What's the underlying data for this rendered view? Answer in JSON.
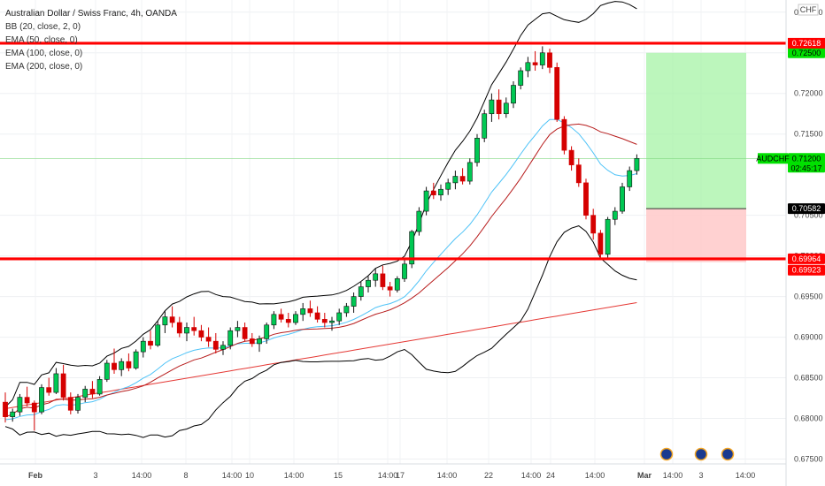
{
  "legend": {
    "title": "Australian Dollar / Swiss Franc, 4h, OANDA",
    "indicators": [
      "BB (20, close, 2, 0)",
      "EMA (50, close, 0)",
      "EMA (100, close, 0)",
      "EMA (200, close, 0)"
    ]
  },
  "currency_label": "CHF",
  "colors": {
    "up": "#26a69a",
    "up_fill": "#00c853",
    "down": "#d50000",
    "level": "#ff0000",
    "bb": "#000000",
    "ema50": "#4fc3f7",
    "ema100": "#b71c1c",
    "ema200": "#e53935",
    "target_zone": "#a5f3a5",
    "stop_zone": "#ffc9c9",
    "price_tag": "#00e000"
  },
  "chart_data": {
    "type": "candlestick",
    "title": "Australian Dollar / Swiss Franc, 4h, OANDA",
    "ylim": [
      0.6744,
      0.7315
    ],
    "y_ticks": [
      0.675,
      0.68,
      0.685,
      0.69,
      0.695,
      0.7,
      0.705,
      0.715,
      0.72,
      0.725,
      0.73
    ],
    "y_tick_labels": [
      "0.67500",
      "0.68000",
      "0.68500",
      "0.69000",
      "0.69500",
      "0.70000",
      "0.70500",
      "0.71500",
      "0.72000",
      "0.72500",
      "0.73000"
    ],
    "x_ticks": [
      "Feb",
      "3",
      "14:00",
      "8",
      "14:00",
      "10",
      "14:00",
      "15",
      "14:00",
      "17",
      "14:00",
      "22",
      "14:00",
      "24",
      "14:00",
      "Mar",
      "14:00",
      "3",
      "14:00"
    ],
    "horizontal_levels": [
      {
        "value": 0.72618,
        "label": "0.72618"
      },
      {
        "value": 0.69964,
        "label": "0.69964"
      }
    ],
    "position": {
      "target": 0.725,
      "entry": 0.70582,
      "stop": 0.69923
    },
    "price_labels": [
      {
        "value": 0.725,
        "label": "0.72500",
        "kind": "target"
      },
      {
        "value": 0.712,
        "label": "0.71200",
        "kind": "current",
        "symbol": "AUDCHF",
        "countdown": "02:45:17"
      },
      {
        "value": 0.70582,
        "label": "0.70582",
        "kind": "entry"
      },
      {
        "value": 0.69964,
        "label": "0.69964",
        "kind": "level"
      },
      {
        "value": 0.69923,
        "label": "0.69923",
        "kind": "stop"
      }
    ],
    "candles": [
      {
        "o": 0.682,
        "h": 0.6832,
        "l": 0.6795,
        "c": 0.6802
      },
      {
        "o": 0.6802,
        "h": 0.6812,
        "l": 0.6796,
        "c": 0.6808
      },
      {
        "o": 0.6808,
        "h": 0.683,
        "l": 0.6803,
        "c": 0.6826
      },
      {
        "o": 0.6826,
        "h": 0.6839,
        "l": 0.6815,
        "c": 0.6819
      },
      {
        "o": 0.6819,
        "h": 0.6822,
        "l": 0.6785,
        "c": 0.6808
      },
      {
        "o": 0.6808,
        "h": 0.6842,
        "l": 0.6805,
        "c": 0.6838
      },
      {
        "o": 0.6838,
        "h": 0.685,
        "l": 0.6828,
        "c": 0.6832
      },
      {
        "o": 0.6832,
        "h": 0.6862,
        "l": 0.683,
        "c": 0.6855
      },
      {
        "o": 0.6855,
        "h": 0.6866,
        "l": 0.6822,
        "c": 0.6826
      },
      {
        "o": 0.6826,
        "h": 0.6832,
        "l": 0.6805,
        "c": 0.681
      },
      {
        "o": 0.681,
        "h": 0.683,
        "l": 0.6806,
        "c": 0.6826
      },
      {
        "o": 0.6826,
        "h": 0.684,
        "l": 0.682,
        "c": 0.6836
      },
      {
        "o": 0.6836,
        "h": 0.6846,
        "l": 0.6825,
        "c": 0.683
      },
      {
        "o": 0.683,
        "h": 0.6852,
        "l": 0.6828,
        "c": 0.6848
      },
      {
        "o": 0.6848,
        "h": 0.6872,
        "l": 0.6845,
        "c": 0.6868
      },
      {
        "o": 0.6868,
        "h": 0.6886,
        "l": 0.6855,
        "c": 0.686
      },
      {
        "o": 0.686,
        "h": 0.6874,
        "l": 0.6852,
        "c": 0.687
      },
      {
        "o": 0.687,
        "h": 0.688,
        "l": 0.6858,
        "c": 0.6862
      },
      {
        "o": 0.6862,
        "h": 0.6885,
        "l": 0.686,
        "c": 0.6882
      },
      {
        "o": 0.6882,
        "h": 0.69,
        "l": 0.6875,
        "c": 0.6895
      },
      {
        "o": 0.6895,
        "h": 0.6908,
        "l": 0.6885,
        "c": 0.689
      },
      {
        "o": 0.689,
        "h": 0.692,
        "l": 0.6888,
        "c": 0.6915
      },
      {
        "o": 0.6915,
        "h": 0.6932,
        "l": 0.6905,
        "c": 0.6925
      },
      {
        "o": 0.6925,
        "h": 0.6938,
        "l": 0.6912,
        "c": 0.6918
      },
      {
        "o": 0.6918,
        "h": 0.6925,
        "l": 0.69,
        "c": 0.6905
      },
      {
        "o": 0.6905,
        "h": 0.6918,
        "l": 0.6895,
        "c": 0.6912
      },
      {
        "o": 0.6912,
        "h": 0.6925,
        "l": 0.6902,
        "c": 0.6908
      },
      {
        "o": 0.6908,
        "h": 0.6915,
        "l": 0.6895,
        "c": 0.69
      },
      {
        "o": 0.69,
        "h": 0.6912,
        "l": 0.6888,
        "c": 0.6895
      },
      {
        "o": 0.6895,
        "h": 0.6905,
        "l": 0.688,
        "c": 0.6885
      },
      {
        "o": 0.6885,
        "h": 0.6895,
        "l": 0.6878,
        "c": 0.689
      },
      {
        "o": 0.689,
        "h": 0.6912,
        "l": 0.6885,
        "c": 0.6908
      },
      {
        "o": 0.6908,
        "h": 0.692,
        "l": 0.69,
        "c": 0.6912
      },
      {
        "o": 0.6912,
        "h": 0.6918,
        "l": 0.6895,
        "c": 0.6898
      },
      {
        "o": 0.6898,
        "h": 0.6905,
        "l": 0.6888,
        "c": 0.6892
      },
      {
        "o": 0.6892,
        "h": 0.6902,
        "l": 0.6882,
        "c": 0.6898
      },
      {
        "o": 0.6898,
        "h": 0.6918,
        "l": 0.6892,
        "c": 0.6915
      },
      {
        "o": 0.6915,
        "h": 0.6932,
        "l": 0.691,
        "c": 0.6928
      },
      {
        "o": 0.6928,
        "h": 0.6935,
        "l": 0.6918,
        "c": 0.6922
      },
      {
        "o": 0.6922,
        "h": 0.693,
        "l": 0.6912,
        "c": 0.6918
      },
      {
        "o": 0.6918,
        "h": 0.6932,
        "l": 0.6915,
        "c": 0.6928
      },
      {
        "o": 0.6928,
        "h": 0.6942,
        "l": 0.692,
        "c": 0.6935
      },
      {
        "o": 0.6935,
        "h": 0.6945,
        "l": 0.6925,
        "c": 0.693
      },
      {
        "o": 0.693,
        "h": 0.6938,
        "l": 0.6918,
        "c": 0.6922
      },
      {
        "o": 0.6922,
        "h": 0.693,
        "l": 0.6912,
        "c": 0.6918
      },
      {
        "o": 0.6918,
        "h": 0.6925,
        "l": 0.6908,
        "c": 0.692
      },
      {
        "o": 0.692,
        "h": 0.6935,
        "l": 0.6915,
        "c": 0.693
      },
      {
        "o": 0.693,
        "h": 0.6942,
        "l": 0.6925,
        "c": 0.6938
      },
      {
        "o": 0.6938,
        "h": 0.6955,
        "l": 0.693,
        "c": 0.695
      },
      {
        "o": 0.695,
        "h": 0.6968,
        "l": 0.6945,
        "c": 0.6962
      },
      {
        "o": 0.6962,
        "h": 0.6975,
        "l": 0.6955,
        "c": 0.697
      },
      {
        "o": 0.697,
        "h": 0.6985,
        "l": 0.6962,
        "c": 0.6978
      },
      {
        "o": 0.6978,
        "h": 0.6988,
        "l": 0.6958,
        "c": 0.6962
      },
      {
        "o": 0.6962,
        "h": 0.6968,
        "l": 0.695,
        "c": 0.6958
      },
      {
        "o": 0.6958,
        "h": 0.6975,
        "l": 0.6955,
        "c": 0.6972
      },
      {
        "o": 0.6972,
        "h": 0.6995,
        "l": 0.6968,
        "c": 0.699
      },
      {
        "o": 0.699,
        "h": 0.7032,
        "l": 0.6985,
        "c": 0.703
      },
      {
        "o": 0.703,
        "h": 0.706,
        "l": 0.7025,
        "c": 0.7055
      },
      {
        "o": 0.7055,
        "h": 0.7085,
        "l": 0.705,
        "c": 0.708
      },
      {
        "o": 0.708,
        "h": 0.709,
        "l": 0.707,
        "c": 0.7075
      },
      {
        "o": 0.7075,
        "h": 0.7088,
        "l": 0.7068,
        "c": 0.7082
      },
      {
        "o": 0.7082,
        "h": 0.7095,
        "l": 0.7075,
        "c": 0.709
      },
      {
        "o": 0.709,
        "h": 0.7105,
        "l": 0.7082,
        "c": 0.7098
      },
      {
        "o": 0.7098,
        "h": 0.7108,
        "l": 0.7088,
        "c": 0.7092
      },
      {
        "o": 0.7092,
        "h": 0.712,
        "l": 0.7088,
        "c": 0.7115
      },
      {
        "o": 0.7115,
        "h": 0.715,
        "l": 0.711,
        "c": 0.7145
      },
      {
        "o": 0.7145,
        "h": 0.718,
        "l": 0.714,
        "c": 0.7175
      },
      {
        "o": 0.7175,
        "h": 0.72,
        "l": 0.7165,
        "c": 0.7192
      },
      {
        "o": 0.7192,
        "h": 0.7205,
        "l": 0.7168,
        "c": 0.7175
      },
      {
        "o": 0.7175,
        "h": 0.7195,
        "l": 0.717,
        "c": 0.7188
      },
      {
        "o": 0.7188,
        "h": 0.7215,
        "l": 0.7182,
        "c": 0.721
      },
      {
        "o": 0.721,
        "h": 0.7232,
        "l": 0.7205,
        "c": 0.7228
      },
      {
        "o": 0.7228,
        "h": 0.7245,
        "l": 0.722,
        "c": 0.7238
      },
      {
        "o": 0.7238,
        "h": 0.7252,
        "l": 0.7228,
        "c": 0.7235
      },
      {
        "o": 0.7235,
        "h": 0.7258,
        "l": 0.723,
        "c": 0.725
      },
      {
        "o": 0.725,
        "h": 0.7255,
        "l": 0.7225,
        "c": 0.7232
      },
      {
        "o": 0.7232,
        "h": 0.7238,
        "l": 0.7165,
        "c": 0.7168
      },
      {
        "o": 0.7168,
        "h": 0.7172,
        "l": 0.7125,
        "c": 0.713
      },
      {
        "o": 0.713,
        "h": 0.7135,
        "l": 0.7105,
        "c": 0.7112
      },
      {
        "o": 0.7112,
        "h": 0.712,
        "l": 0.7085,
        "c": 0.709
      },
      {
        "o": 0.709,
        "h": 0.7095,
        "l": 0.7045,
        "c": 0.705
      },
      {
        "o": 0.705,
        "h": 0.7058,
        "l": 0.702,
        "c": 0.7028
      },
      {
        "o": 0.7028,
        "h": 0.7032,
        "l": 0.6996,
        "c": 0.7002
      },
      {
        "o": 0.7002,
        "h": 0.7048,
        "l": 0.6998,
        "c": 0.7045
      },
      {
        "o": 0.7045,
        "h": 0.706,
        "l": 0.7038,
        "c": 0.7055
      },
      {
        "o": 0.7055,
        "h": 0.709,
        "l": 0.7052,
        "c": 0.7085
      },
      {
        "o": 0.7085,
        "h": 0.711,
        "l": 0.708,
        "c": 0.7105
      },
      {
        "o": 0.7105,
        "h": 0.7125,
        "l": 0.71,
        "c": 0.712
      }
    ]
  }
}
